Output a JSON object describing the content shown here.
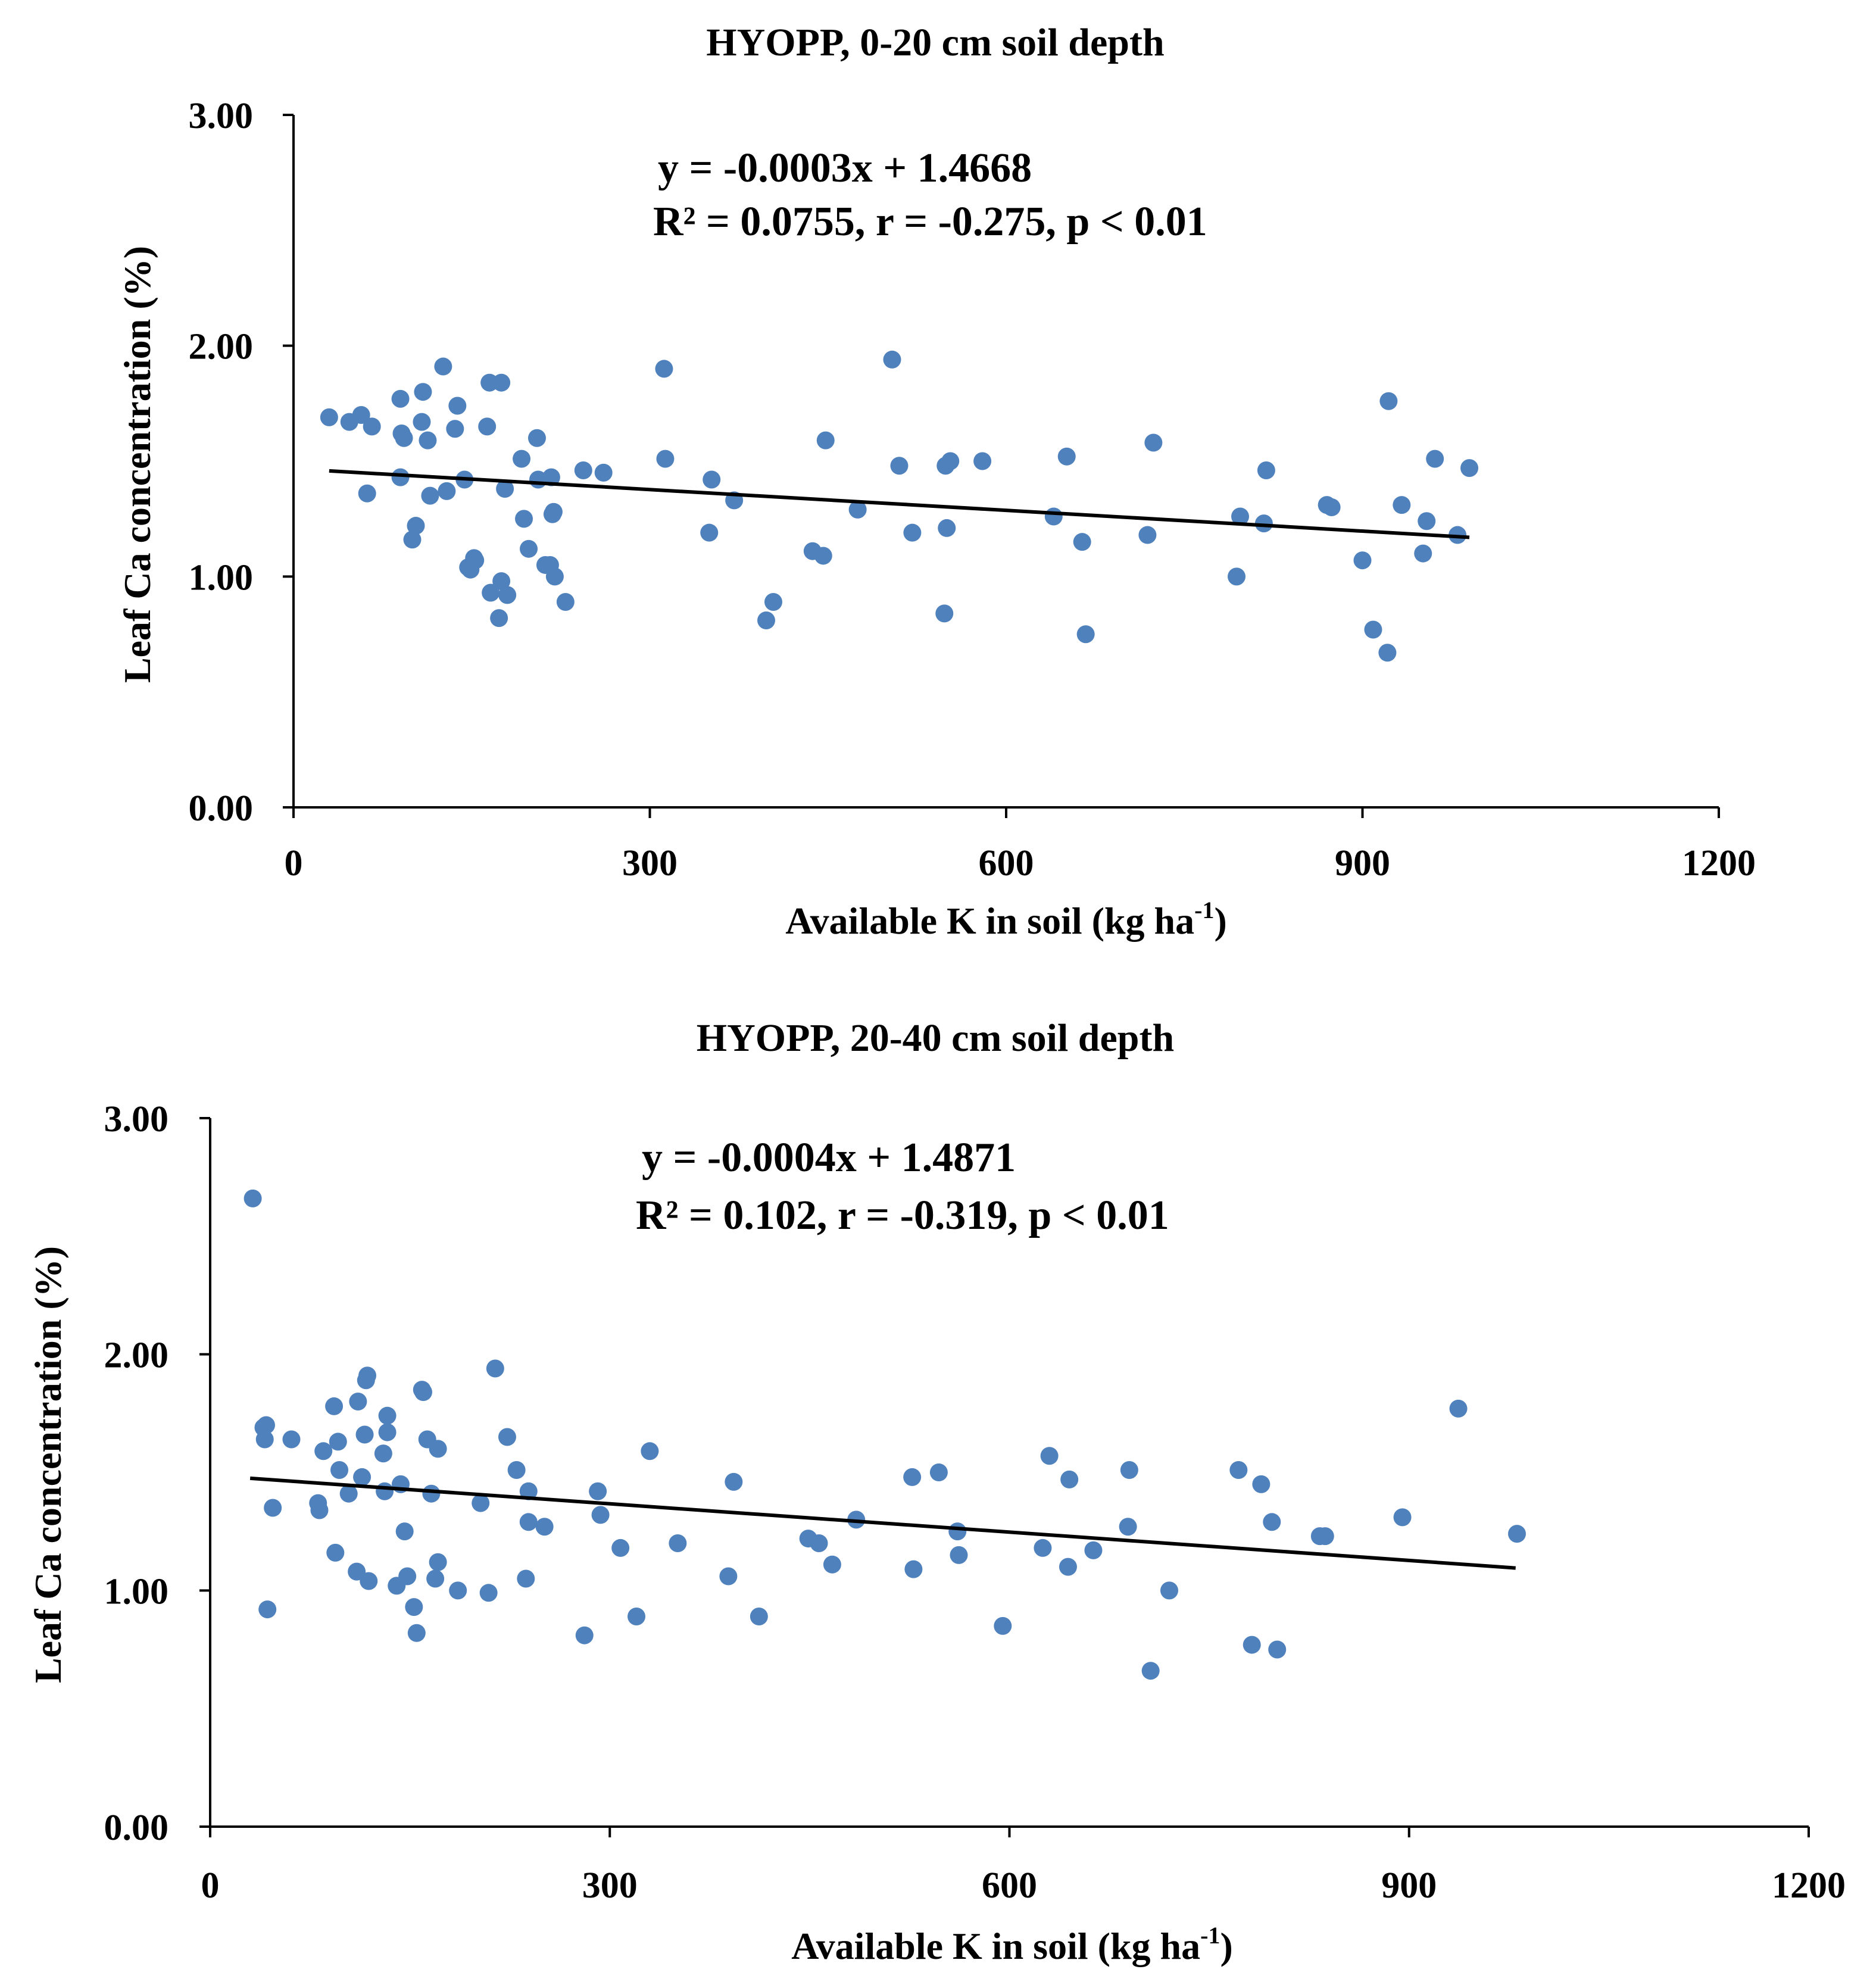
{
  "colors": {
    "marker": "#4f81bd",
    "axis": "#000000",
    "trendline": "#000000",
    "background": "#ffffff"
  },
  "chart_data": [
    {
      "type": "scatter",
      "title": "HYOPP, 0-20 cm soil depth",
      "xlabel": "Available  K in soil (kg ha",
      "xlabel_sup": "-1",
      "xlabel_close": ")",
      "ylabel": "Leaf Ca concentration (%)",
      "xlim": [
        0,
        1200
      ],
      "ylim": [
        0,
        3
      ],
      "xticks": [
        "0",
        "300",
        "600",
        "900",
        "1200"
      ],
      "yticks": [
        "0.00",
        "1.00",
        "2.00",
        "3.00"
      ],
      "grid": false,
      "equation": "y = -0.0003x + 1.4668",
      "stats": "R² = 0.0755, r = -0.275, p < 0.01",
      "trendline": {
        "slope": -0.0003,
        "intercept": 1.4668,
        "x_range": [
          30,
          990
        ]
      },
      "x": [
        30,
        47,
        57,
        66,
        62,
        90,
        91,
        93,
        90,
        103,
        100,
        108,
        109,
        113,
        115,
        126,
        129,
        138,
        136,
        147,
        144,
        152,
        153,
        149,
        163,
        165,
        166,
        175,
        173,
        180,
        175,
        178,
        192,
        194,
        205,
        198,
        206,
        217,
        216,
        212,
        219,
        229,
        220,
        218,
        244,
        261,
        312,
        313,
        350,
        352,
        371,
        398,
        404,
        437,
        446,
        448,
        475,
        504,
        510,
        521,
        548,
        549,
        550,
        553,
        580,
        640,
        651,
        664,
        667,
        719,
        724,
        794,
        797,
        819,
        817,
        870,
        874,
        900,
        909,
        921,
        922,
        933,
        951,
        954,
        961,
        980,
        990
      ],
      "y": [
        1.69,
        1.67,
        1.7,
        1.65,
        1.36,
        1.77,
        1.62,
        1.6,
        1.43,
        1.22,
        1.16,
        1.67,
        1.8,
        1.59,
        1.35,
        1.91,
        1.37,
        1.74,
        1.64,
        1.04,
        1.42,
        1.08,
        1.07,
        1.03,
        1.65,
        1.84,
        0.93,
        0.98,
        0.82,
        0.92,
        1.84,
        1.38,
        1.51,
        1.25,
        1.6,
        1.12,
        1.42,
        1.43,
        1.05,
        1.05,
        1.28,
        0.89,
        1.0,
        1.27,
        1.46,
        1.45,
        1.9,
        1.51,
        1.19,
        1.42,
        1.33,
        0.81,
        0.89,
        1.11,
        1.09,
        1.59,
        1.29,
        1.94,
        1.48,
        1.19,
        0.84,
        1.48,
        1.21,
        1.5,
        1.5,
        1.26,
        1.52,
        1.15,
        0.75,
        1.18,
        1.58,
        1.0,
        1.26,
        1.46,
        1.23,
        1.31,
        1.3,
        1.07,
        0.77,
        0.67,
        1.76,
        1.31,
        1.1,
        1.24,
        1.51,
        1.18,
        1.47
      ]
    },
    {
      "type": "scatter",
      "title": "HYOPP, 20-40 cm soil depth",
      "xlabel": "Available  K in soil (kg ha",
      "xlabel_sup": "-1",
      "xlabel_close": ")",
      "ylabel": "Leaf Ca concentration (%)",
      "xlim": [
        0,
        1200
      ],
      "ylim": [
        0,
        3
      ],
      "xticks": [
        "0",
        "300",
        "600",
        "900",
        "1200"
      ],
      "yticks": [
        "0.00",
        "1.00",
        "2.00",
        "3.00"
      ],
      "grid": false,
      "equation": "y = -0.0004x + 1.4871",
      "stats": "R² = 0.102, r = -0.319, p < 0.01",
      "trendline": {
        "slope": -0.0004,
        "intercept": 1.4871,
        "x_range": [
          30,
          980
        ]
      },
      "x": [
        32,
        40,
        41,
        42,
        43,
        47,
        61,
        81,
        82,
        85,
        93,
        94,
        96,
        97,
        104,
        110,
        111,
        114,
        116,
        117,
        118,
        119,
        130,
        133,
        133,
        131,
        140,
        143,
        146,
        148,
        153,
        155,
        159,
        160,
        163,
        166,
        169,
        171,
        171,
        186,
        203,
        209,
        214,
        223,
        230,
        237,
        239,
        239,
        251,
        281,
        291,
        293,
        308,
        320,
        330,
        351,
        389,
        393,
        412,
        449,
        457,
        467,
        485,
        527,
        528,
        547,
        561,
        562,
        595,
        625,
        630,
        644,
        645,
        663,
        689,
        690,
        706,
        720,
        772,
        782,
        789,
        797,
        801,
        833,
        837,
        895,
        937,
        981
      ],
      "y": [
        2.66,
        1.69,
        1.64,
        1.7,
        0.92,
        1.35,
        1.64,
        1.37,
        1.34,
        1.59,
        1.78,
        1.16,
        1.63,
        1.51,
        1.41,
        1.08,
        1.8,
        1.48,
        1.66,
        1.89,
        1.91,
        1.04,
        1.58,
        1.67,
        1.74,
        1.42,
        1.02,
        1.45,
        1.25,
        1.06,
        0.93,
        0.82,
        1.85,
        1.84,
        1.64,
        1.41,
        1.05,
        1.12,
        1.6,
        1.0,
        1.37,
        0.99,
        1.94,
        1.65,
        1.51,
        1.05,
        1.29,
        1.42,
        1.27,
        0.81,
        1.42,
        1.32,
        1.18,
        0.89,
        1.59,
        1.2,
        1.06,
        1.46,
        0.89,
        1.22,
        1.2,
        1.11,
        1.3,
        1.48,
        1.09,
        1.5,
        1.25,
        1.15,
        0.85,
        1.18,
        1.57,
        1.1,
        1.47,
        1.17,
        1.27,
        1.51,
        0.66,
        1.0,
        1.51,
        0.77,
        1.45,
        1.29,
        0.75,
        1.23,
        1.23,
        1.31,
        1.77,
        1.24
      ]
    }
  ]
}
